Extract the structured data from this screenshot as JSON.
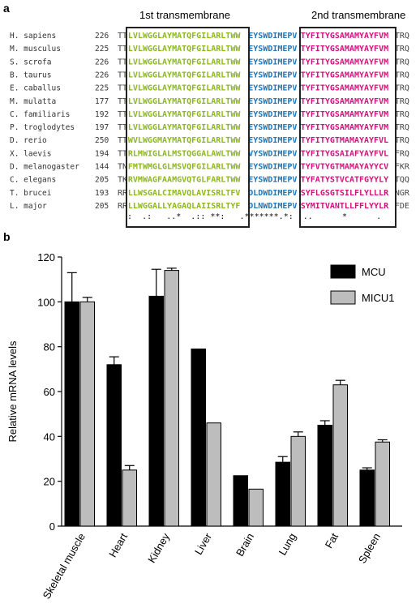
{
  "panel_a": {
    "label": "a",
    "tm1_title": "1st transmembrane",
    "tm2_title": "2nd transmembrane",
    "colors": {
      "tm1": "#8db81c",
      "mid": "#1f76b8",
      "tm2": "#d4107d",
      "flank": "#444444"
    },
    "rows": [
      {
        "species": "H. sapiens",
        "start": "226",
        "pre": "TT",
        "tm1": "LVLWGGLAYMATQFGILARLTWW",
        "mid": "EYSWDIMEPV",
        "tm2": "TYFITYGSAMAMYAYFVM",
        "post": "TRQ"
      },
      {
        "species": "M. musculus",
        "start": "225",
        "pre": "TT",
        "tm1": "LVLWGGLAYMATQFGILARLTWW",
        "mid": "EYSWDIMEPV",
        "tm2": "TYFITYGSAMAMYAYFVM",
        "post": "TRQ"
      },
      {
        "species": "S. scrofa",
        "start": "226",
        "pre": "TT",
        "tm1": "LVLWGGLAYMATQFGILARLTWW",
        "mid": "EYSWDIMEPV",
        "tm2": "TYFITYGSAMAMYAYFVM",
        "post": "TRQ"
      },
      {
        "species": "B. taurus",
        "start": "226",
        "pre": "TT",
        "tm1": "LVLWGGLAYMATQFGILARLTWW",
        "mid": "EYSWDIMEPV",
        "tm2": "TYFITYGSAMAMYAYFVM",
        "post": "TRQ"
      },
      {
        "species": "E. caballus",
        "start": "225",
        "pre": "TT",
        "tm1": "LVLWGGLAYMATQFGILARLTWW",
        "mid": "EYSWDIMEPV",
        "tm2": "TYFITYGSAMAMYAYFVM",
        "post": "TRQ"
      },
      {
        "species": "M. mulatta",
        "start": "177",
        "pre": "TT",
        "tm1": "LVLWGGLAYMATQFGILARLTWW",
        "mid": "EYSWDIMEPV",
        "tm2": "TYFITYGSAMAMYAYFVM",
        "post": "TRQ"
      },
      {
        "species": "C. familiaris",
        "start": "192",
        "pre": "TT",
        "tm1": "LVLWGGLAYMATQFGILARLTWW",
        "mid": "EYSWDIMEPV",
        "tm2": "TYFITYGSAMAMYAYFVM",
        "post": "TRQ"
      },
      {
        "species": "P. troglodytes",
        "start": "197",
        "pre": "TT",
        "tm1": "LVLWGGLAYMATQFGILARLTWW",
        "mid": "EYSWDIMEPV",
        "tm2": "TYFITYGSAMAMYAYFVM",
        "post": "TRQ"
      },
      {
        "species": "D. rerio",
        "start": "250",
        "pre": "TT",
        "tm1": "WVLWGGMAYMATQFGILARLTWW",
        "mid": "EYSWDIMEPV",
        "tm2": "TYFITYGTMAMAYAYFVL",
        "post": "TRQ"
      },
      {
        "species": "X. laevis",
        "start": "194",
        "pre": "TT",
        "tm1": "RLMWIGLALMSTQGGALAWLTWW",
        "mid": "VYSWDIMEPV",
        "tm2": "TYFITYGSAIAFYAYFVL",
        "post": "FRQ"
      },
      {
        "species": "D. melanogaster",
        "start": "144",
        "pre": "TN",
        "tm1": "FMTWMGLGLMSVQFGILARLTWW",
        "mid": "EYSWDIMEPV",
        "tm2": "TYFVTYGTMAMAYAYYCV",
        "post": "FKR"
      },
      {
        "species": "C. elegans",
        "start": "205",
        "pre": "TK",
        "tm1": "RVMWAGFAAMGVQTGLFARLTWW",
        "mid": "EYSWDIMEPV",
        "tm2": "TYFATYSTVCATFGYYLY",
        "post": "TQQ"
      },
      {
        "species": "T. brucei",
        "start": "193",
        "pre": "RR",
        "tm1": "LLWSGALCIMAVQLAVISRLTFV",
        "mid": "DLDWDIMEPV",
        "tm2": "SYFLGSGTSILFLYLLLR",
        "post": "NGR"
      },
      {
        "species": "L. major",
        "start": "205",
        "pre": "RR",
        "tm1": "LLWGGALLYAGAQLAIISRLTYF",
        "mid": "DLNWDIMEPV",
        "tm2": "SYMITVANTLLFFLYYLR",
        "post": "FDE"
      }
    ],
    "consensus": "  :  .:   ..*  .:: **:   .*******.*:  ..      *      ."
  },
  "panel_b": {
    "label": "b"
  },
  "chart_data": {
    "type": "bar",
    "categories": [
      "Skeletal muscle",
      "Heart",
      "Kidney",
      "Liver",
      "Brain",
      "Lung",
      "Fat",
      "Spleen"
    ],
    "series": [
      {
        "name": "MCU",
        "color": "#000000",
        "values": [
          100,
          72,
          102.5,
          79,
          22.5,
          28.5,
          45,
          25
        ],
        "errors": [
          13,
          3.5,
          12,
          0,
          0,
          2.5,
          2,
          1
        ]
      },
      {
        "name": "MICU1",
        "color": "#bdbdbd",
        "values": [
          100,
          25,
          114,
          46,
          16.5,
          40,
          63,
          37.5
        ],
        "errors": [
          2,
          2,
          1,
          0,
          0,
          2,
          2,
          1
        ]
      }
    ],
    "title": "",
    "xlabel": "",
    "ylabel": "Relative mRNA levels",
    "ylim": [
      0,
      120
    ],
    "yticks": [
      0,
      20,
      40,
      60,
      80,
      100,
      120
    ],
    "legend_position": "top-right",
    "grid": false
  }
}
